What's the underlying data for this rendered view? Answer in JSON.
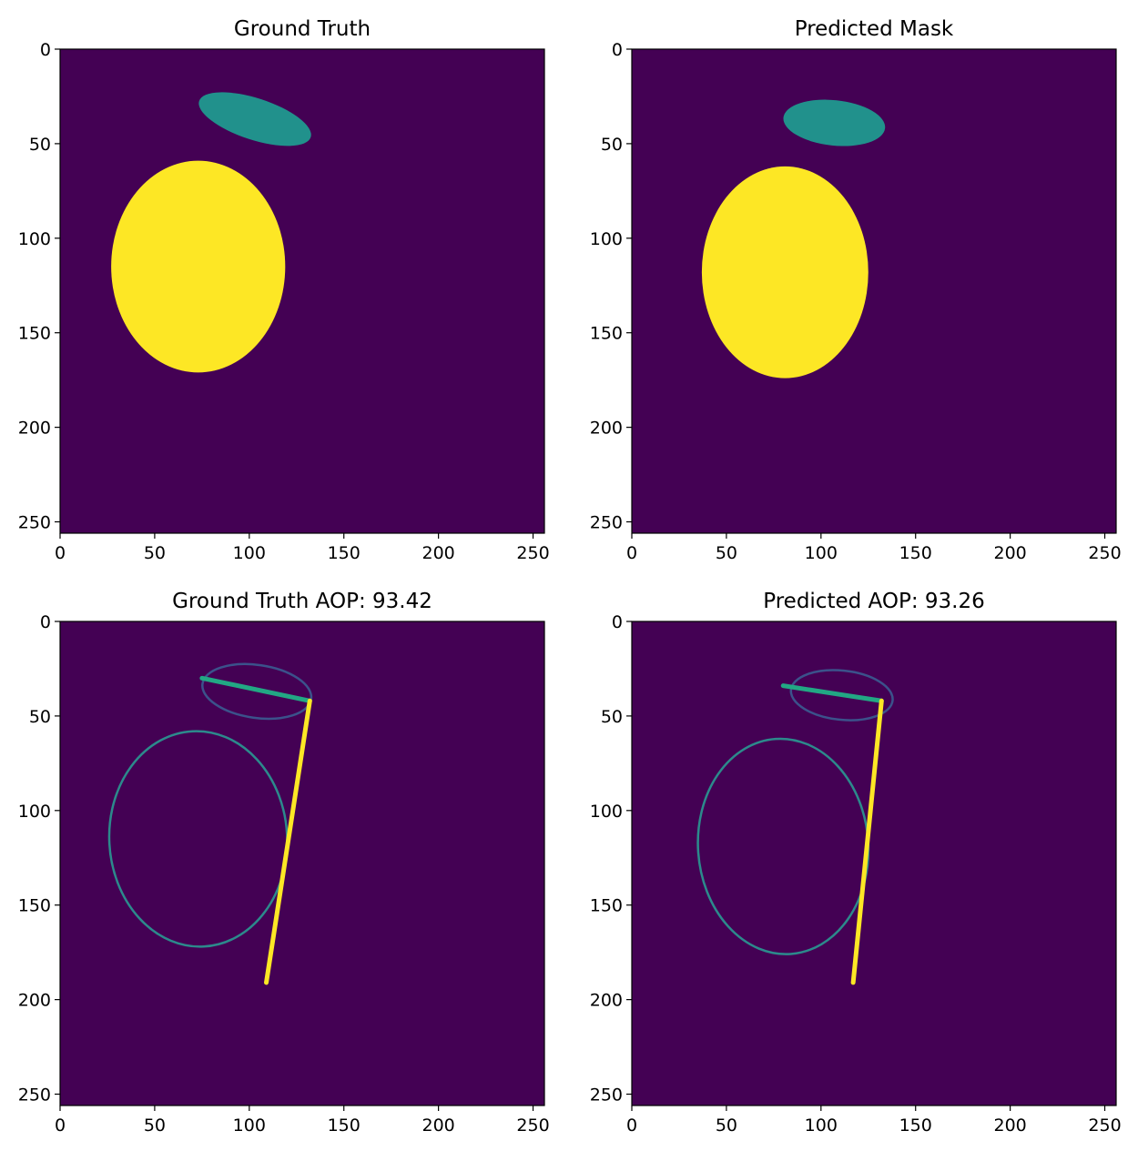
{
  "figure": {
    "background": "#ffffff",
    "palette": {
      "background": "#440154",
      "class1": "#21918c",
      "class2": "#fde725",
      "ellipse_outline": "#2c8a8c",
      "small_ellipse_outline": "#3b528b",
      "short_axis_line": "#22a884"
    }
  },
  "chart_data": [
    {
      "type": "heatmap",
      "title": "Ground Truth",
      "xlim": [
        0,
        256
      ],
      "ylim": [
        256,
        0
      ],
      "xticks": [
        0,
        50,
        100,
        150,
        200,
        250
      ],
      "yticks": [
        0,
        50,
        100,
        150,
        200,
        250
      ],
      "regions": [
        {
          "class": 2,
          "shape": "ellipse",
          "cx": 73,
          "cy": 115,
          "rx": 46,
          "ry": 56
        },
        {
          "class": 1,
          "shape": "ellipse",
          "cx": 103,
          "cy": 37,
          "rx": 31,
          "ry": 11,
          "angle": 18
        }
      ]
    },
    {
      "type": "heatmap",
      "title": "Predicted Mask",
      "xlim": [
        0,
        256
      ],
      "ylim": [
        256,
        0
      ],
      "xticks": [
        0,
        50,
        100,
        150,
        200,
        250
      ],
      "yticks": [
        0,
        50,
        100,
        150,
        200,
        250
      ],
      "regions": [
        {
          "class": 2,
          "shape": "ellipse",
          "cx": 81,
          "cy": 118,
          "rx": 44,
          "ry": 56
        },
        {
          "class": 1,
          "shape": "ellipse",
          "cx": 107,
          "cy": 39,
          "rx": 27,
          "ry": 12,
          "angle": 6
        }
      ]
    },
    {
      "type": "heatmap",
      "title": "Ground Truth AOP: 93.42",
      "xlim": [
        0,
        256
      ],
      "ylim": [
        256,
        0
      ],
      "xticks": [
        0,
        50,
        100,
        150,
        200,
        250
      ],
      "yticks": [
        0,
        50,
        100,
        150,
        200,
        250
      ],
      "ellipses": [
        {
          "cx": 73,
          "cy": 115,
          "rx": 47,
          "ry": 57,
          "angle": -3,
          "color": "#2c8a8c"
        },
        {
          "cx": 104,
          "cy": 37,
          "rx": 29,
          "ry": 14,
          "angle": 8,
          "color": "#3b528b"
        }
      ],
      "lines": [
        {
          "x1": 75,
          "y1": 30,
          "x2": 132,
          "y2": 42,
          "color": "#22a884"
        },
        {
          "x1": 132,
          "y1": 42,
          "x2": 109,
          "y2": 191,
          "color": "#fde725"
        }
      ]
    },
    {
      "type": "heatmap",
      "title": "Predicted AOP: 93.26",
      "xlim": [
        0,
        256
      ],
      "ylim": [
        256,
        0
      ],
      "xticks": [
        0,
        50,
        100,
        150,
        200,
        250
      ],
      "yticks": [
        0,
        50,
        100,
        150,
        200,
        250
      ],
      "ellipses": [
        {
          "cx": 80,
          "cy": 119,
          "rx": 45,
          "ry": 57,
          "angle": -4,
          "color": "#2c8a8c"
        },
        {
          "cx": 111,
          "cy": 39,
          "rx": 27,
          "ry": 13,
          "angle": 6,
          "color": "#3b528b"
        }
      ],
      "lines": [
        {
          "x1": 80,
          "y1": 34,
          "x2": 132,
          "y2": 42,
          "color": "#22a884"
        },
        {
          "x1": 132,
          "y1": 42,
          "x2": 117,
          "y2": 191,
          "color": "#fde725"
        }
      ]
    }
  ]
}
